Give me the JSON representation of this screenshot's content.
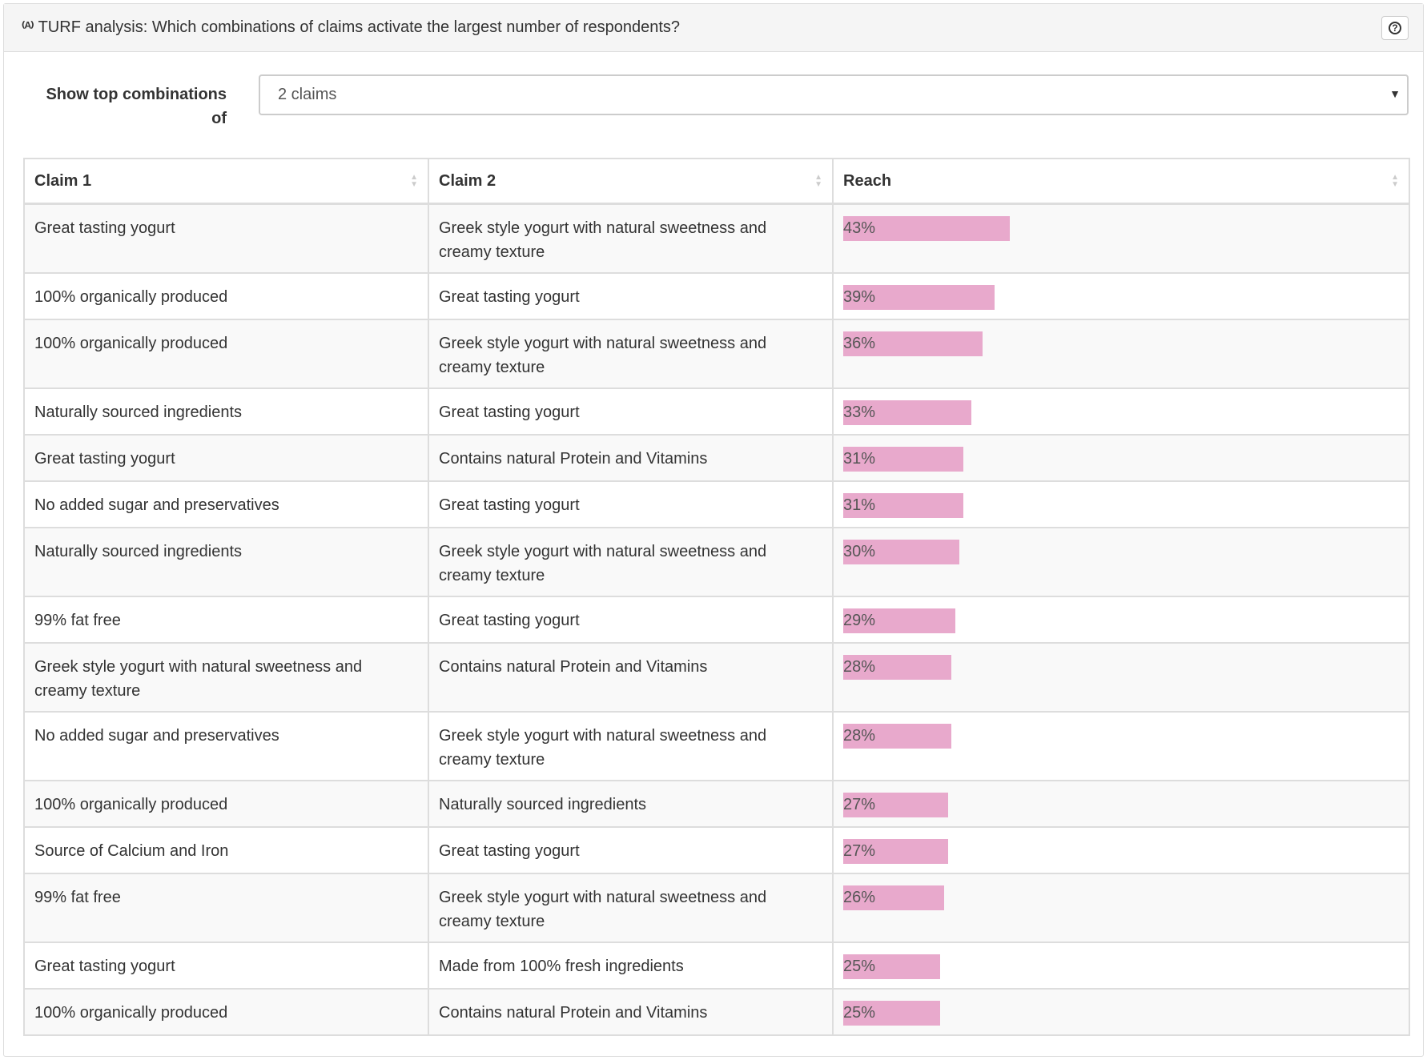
{
  "header": {
    "icon": "turf-icon",
    "icon_glyph": "⁽ᴬ⁾",
    "title": "TURF analysis: Which combinations of claims activate the largest number of respondents?",
    "help_icon": "question-circle-icon",
    "help_glyph": "?"
  },
  "controls": {
    "label": "Show top combinations of",
    "selected": "2 claims"
  },
  "table": {
    "columns": [
      "Claim 1",
      "Claim 2",
      "Reach"
    ],
    "bar_color": "#e8a9cc",
    "rows": [
      {
        "claim1": "Great tasting yogurt",
        "claim2": "Greek style yogurt with natural sweetness and creamy texture",
        "reach": "43%",
        "value": 43
      },
      {
        "claim1": "100% organically produced",
        "claim2": "Great tasting yogurt",
        "reach": "39%",
        "value": 39
      },
      {
        "claim1": "100% organically produced",
        "claim2": "Greek style yogurt with natural sweetness and creamy texture",
        "reach": "36%",
        "value": 36
      },
      {
        "claim1": "Naturally sourced ingredients",
        "claim2": "Great tasting yogurt",
        "reach": "33%",
        "value": 33
      },
      {
        "claim1": "Great tasting yogurt",
        "claim2": "Contains natural Protein and Vitamins",
        "reach": "31%",
        "value": 31
      },
      {
        "claim1": "No added sugar and preservatives",
        "claim2": "Great tasting yogurt",
        "reach": "31%",
        "value": 31
      },
      {
        "claim1": "Naturally sourced ingredients",
        "claim2": "Greek style yogurt with natural sweetness and creamy texture",
        "reach": "30%",
        "value": 30
      },
      {
        "claim1": "99% fat free",
        "claim2": "Great tasting yogurt",
        "reach": "29%",
        "value": 29
      },
      {
        "claim1": "Greek style yogurt with natural sweetness and creamy texture",
        "claim2": "Contains natural Protein and Vitamins",
        "reach": "28%",
        "value": 28
      },
      {
        "claim1": "No added sugar and preservatives",
        "claim2": "Greek style yogurt with natural sweetness and creamy texture",
        "reach": "28%",
        "value": 28
      },
      {
        "claim1": "100% organically produced",
        "claim2": "Naturally sourced ingredients",
        "reach": "27%",
        "value": 27
      },
      {
        "claim1": "Source of Calcium and Iron",
        "claim2": "Great tasting yogurt",
        "reach": "27%",
        "value": 27
      },
      {
        "claim1": "99% fat free",
        "claim2": "Greek style yogurt with natural sweetness and creamy texture",
        "reach": "26%",
        "value": 26
      },
      {
        "claim1": "Great tasting yogurt",
        "claim2": "Made from 100% fresh ingredients",
        "reach": "25%",
        "value": 25
      },
      {
        "claim1": "100% organically produced",
        "claim2": "Contains natural Protein and Vitamins",
        "reach": "25%",
        "value": 25
      }
    ]
  }
}
